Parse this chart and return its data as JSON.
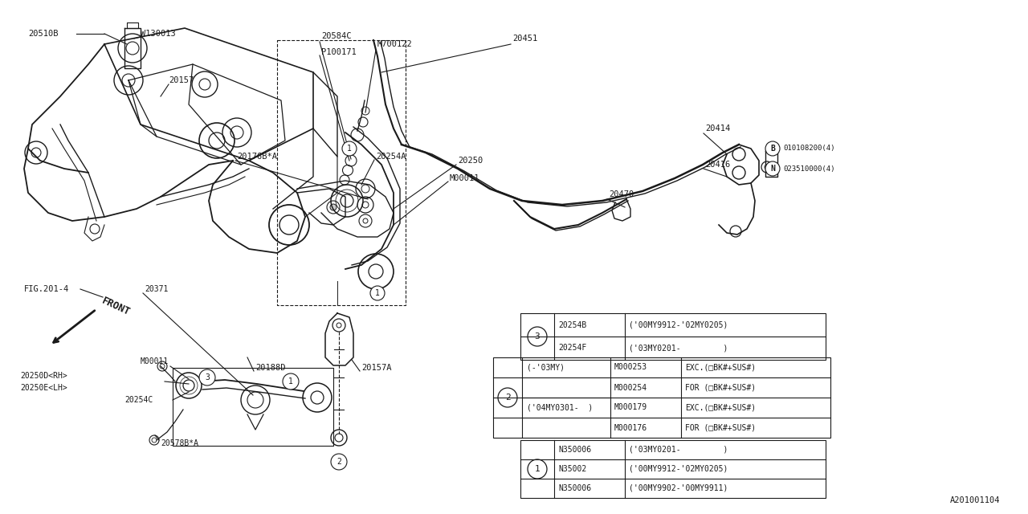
{
  "bg_color": "#ffffff",
  "line_color": "#1a1a1a",
  "fig_ref": "A201001104",
  "table3_rows": [
    [
      "20254B",
      "('00MY9912-'02MY0205)"
    ],
    [
      "20254F",
      "('03MY0201-         )"
    ]
  ],
  "table2_rows": [
    [
      "(-'03MY)",
      "M000176",
      "FOR (□BK#+SUS#)"
    ],
    [
      "",
      "M000179",
      "EXC.(□BK#+SUS#)"
    ],
    [
      "('04MY0301-  )",
      "M000254",
      "FOR (□BK#+SUS#)"
    ],
    [
      "",
      "M000253",
      "EXC.(□BK#+SUS#)"
    ]
  ],
  "table1_rows": [
    [
      "N350006",
      "('00MY9902-'00MY9911)"
    ],
    [
      "N35002",
      "('00MY9912-'02MY0205)"
    ],
    [
      "N350006",
      "('03MY0201-         )"
    ]
  ]
}
